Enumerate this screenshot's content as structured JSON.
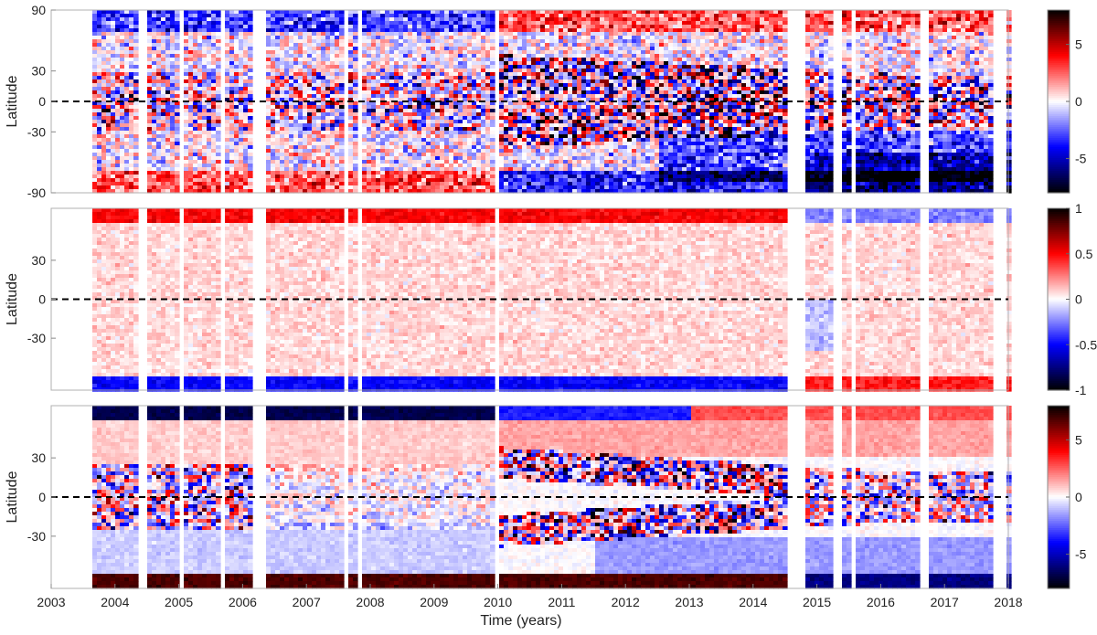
{
  "chart_data": {
    "type": "heatmap",
    "x_label": "Time (years)",
    "x_range": [
      2003,
      2018
    ],
    "x_ticks": [
      "2003",
      "2004",
      "2005",
      "2006",
      "2007",
      "2008",
      "2009",
      "2010",
      "2011",
      "2012",
      "2013",
      "2014",
      "2015",
      "2016",
      "2017",
      "2018"
    ],
    "data_gaps_years": [
      [
        2003.0,
        2003.66
      ],
      [
        2004.38,
        2004.48
      ],
      [
        2005.0,
        2005.05
      ],
      [
        2005.62,
        2005.7
      ],
      [
        2006.12,
        2006.36
      ],
      [
        2007.58,
        2007.66
      ],
      [
        2007.78,
        2007.85
      ],
      [
        2009.92,
        2010.02
      ],
      [
        2014.52,
        2014.82
      ],
      [
        2015.28,
        2015.36
      ],
      [
        2015.52,
        2015.6
      ],
      [
        2016.62,
        2016.74
      ],
      [
        2017.78,
        2018.0
      ]
    ],
    "colormap": [
      "#000000",
      "#0000ff",
      "#ffffff",
      "#ff0000",
      "#000000"
    ],
    "panels": [
      {
        "name": "top",
        "y_label": "Latitude",
        "y_range": [
          -90,
          90
        ],
        "y_ticks": [
          "90",
          "30",
          "0",
          "-30",
          "-90"
        ],
        "y_tick_values": [
          90,
          30,
          0,
          -30,
          -90
        ],
        "color_range": [
          -8,
          8
        ],
        "colorbar_ticks": [
          "5",
          "0",
          "-5"
        ],
        "colorbar_tick_values": [
          5,
          0,
          -5
        ],
        "pattern": "magnetic-noise",
        "description_values": {
          "equator_line": 0
        }
      },
      {
        "name": "middle",
        "y_label": "Latitude",
        "y_range": [
          -70,
          70
        ],
        "y_ticks": [
          "30",
          "0",
          "-30"
        ],
        "y_tick_values": [
          30,
          0,
          -30
        ],
        "color_range": [
          -1,
          1
        ],
        "colorbar_ticks": [
          "1",
          "0.5",
          "0",
          "-0.5",
          "-1"
        ],
        "colorbar_tick_values": [
          1,
          0.5,
          0,
          -0.5,
          -1
        ],
        "pattern": "polar-reversal-weak",
        "description_values": {
          "equator_line": 0
        }
      },
      {
        "name": "bottom",
        "y_label": "Latitude",
        "y_range": [
          -70,
          70
        ],
        "y_ticks": [
          "30",
          "0",
          "-30"
        ],
        "y_tick_values": [
          30,
          0,
          -30
        ],
        "color_range": [
          -8,
          8
        ],
        "colorbar_ticks": [
          "5",
          "0",
          "-5"
        ],
        "colorbar_tick_values": [
          5,
          0,
          -5
        ],
        "pattern": "butterfly",
        "description_values": {
          "equator_line": 0
        }
      }
    ]
  }
}
